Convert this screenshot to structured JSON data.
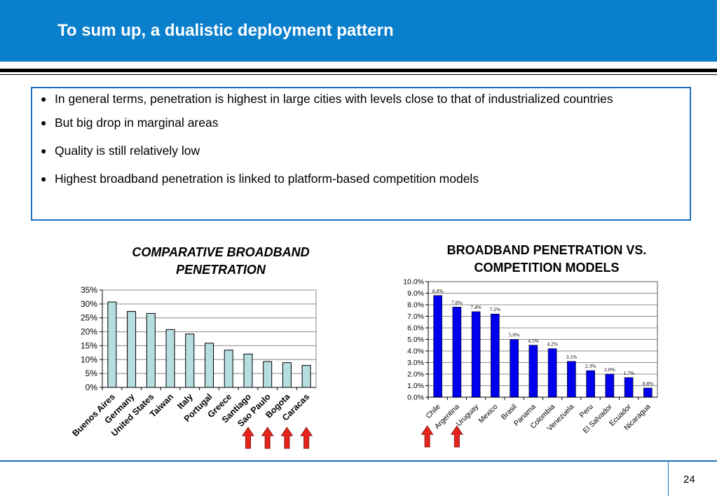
{
  "header": {
    "title": "To sum up, a dualistic deployment pattern"
  },
  "bullets": [
    "In general terms, penetration is highest in large cities with levels close to that of industrialized countries",
    "But big drop in marginal areas",
    "Quality is still relatively low",
    "Highest broadband penetration is linked to platform-based competition models"
  ],
  "footer": {
    "page_number": "24"
  },
  "colors": {
    "header": "#0a7fcc",
    "left_bar": "#b6dde0",
    "right_bar": "#0000ee",
    "arrow": "#e8231b"
  },
  "chart_data": [
    {
      "type": "bar",
      "title": "COMPARATIVE BROADBAND PENETRATION",
      "categories": [
        "Buenos Aires",
        "Germany",
        "United States",
        "Taiwan",
        "Italy",
        "Portugal",
        "Greece",
        "Santiago",
        "Sao Paulo",
        "Bogota",
        "Caracas"
      ],
      "values": [
        30.7,
        27.3,
        26.6,
        20.8,
        19.2,
        15.9,
        13.4,
        12.0,
        9.3,
        8.9,
        7.9
      ],
      "ylim": [
        0,
        35
      ],
      "yticks": [
        "0%",
        "5%",
        "10%",
        "15%",
        "20%",
        "25%",
        "30%",
        "35%"
      ],
      "grid": true,
      "highlighted": [
        "Santiago",
        "Sao Paulo",
        "Bogota",
        "Caracas"
      ]
    },
    {
      "type": "bar",
      "title": "BROADBAND PENETRATION VS. COMPETITION MODELS",
      "categories": [
        "Chile",
        "Argentina",
        "Uruguay",
        "Mexico",
        "Brasil",
        "Panama",
        "Colombia",
        "Venezuela",
        "Peru",
        "El Salvador",
        "Ecuador",
        "Nicaragua"
      ],
      "values": [
        8.8,
        7.8,
        7.4,
        7.2,
        5.0,
        4.5,
        4.2,
        3.1,
        2.3,
        2.0,
        1.7,
        0.8
      ],
      "data_labels": [
        "8.8%",
        "7.8%",
        "7.4%",
        "7.2%",
        "5.0%",
        "4.5%",
        "4.2%",
        "3.1%",
        "2.3%",
        "2.0%",
        "1.7%",
        "0.8%"
      ],
      "ylim": [
        0,
        10
      ],
      "yticks": [
        "0.0%",
        "1.0%",
        "2.0%",
        "3.0%",
        "4.0%",
        "5.0%",
        "6.0%",
        "7.0%",
        "8.0%",
        "9.0%",
        "10.0%"
      ],
      "grid": true,
      "highlighted": [
        "Chile",
        "Argentina"
      ]
    }
  ]
}
